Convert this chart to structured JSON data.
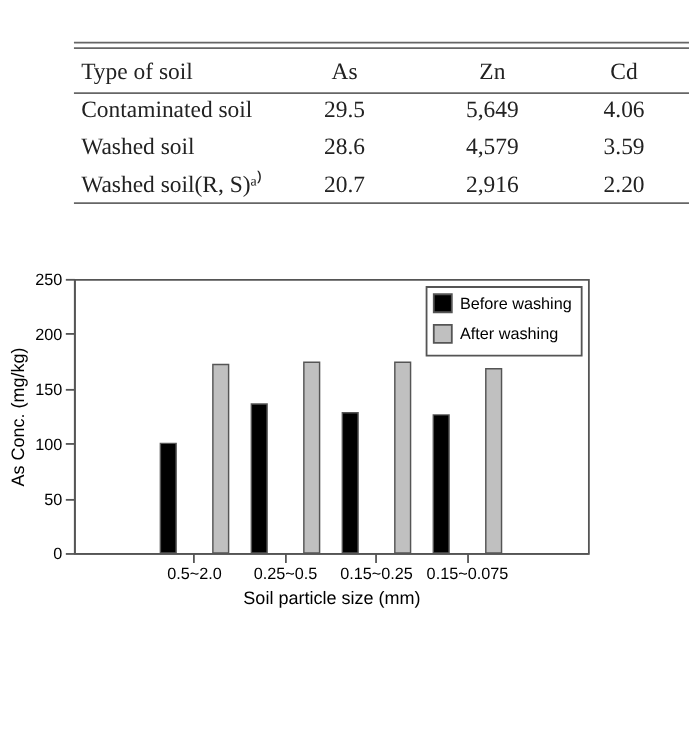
{
  "chart_data": {
    "type": "bar",
    "categories": [
      "0.5~2.0",
      "0.25~0.5",
      "0.15~0.25",
      "0.15~0.075"
    ],
    "series": [
      {
        "name": "Before washing",
        "color": "#000000",
        "values": [
          100,
          136,
          128,
          126
        ]
      },
      {
        "name": "After washing",
        "color": "#c0c0c0",
        "values": [
          172,
          174,
          174,
          168
        ]
      }
    ],
    "xlabel": "Soil particle size (mm)",
    "ylabel": "As Conc. (mg/kg)",
    "ylim": [
      0,
      250
    ],
    "yticks": [
      0,
      50,
      100,
      150,
      200,
      250
    ],
    "grid": false,
    "legend": "top right",
    "annotations": [
      "Type of soil",
      "As",
      "Zn",
      "Cd",
      "Contaminated soil",
      "29.5",
      "5,649",
      "4.06",
      "Washed soil",
      "28.6",
      "4,579",
      "3.59",
      "Washed soil(R, S)ᵃ⁾",
      "20.7",
      "2,916",
      "2.20"
    ]
  }
}
